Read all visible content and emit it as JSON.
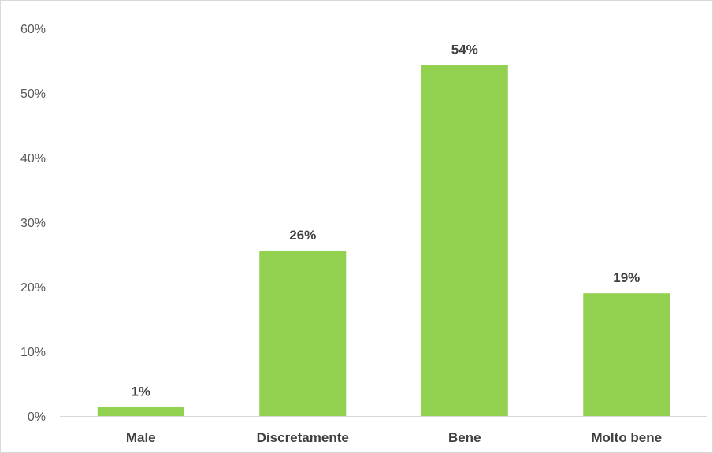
{
  "chart_data": {
    "type": "bar",
    "title": "",
    "xlabel": "",
    "ylabel": "",
    "categories": [
      "Male",
      "Discretamente",
      "Bene",
      "Molto bene"
    ],
    "values": [
      1.4,
      25.6,
      54.3,
      19.0
    ],
    "data_labels": [
      "1%",
      "26%",
      "54%",
      "19%"
    ],
    "ylim": [
      0,
      60
    ],
    "yticks": [
      0,
      10,
      20,
      30,
      40,
      50,
      60
    ],
    "ytick_labels": [
      "0%",
      "10%",
      "20%",
      "30%",
      "40%",
      "50%",
      "60%"
    ],
    "grid": false,
    "legend": "none",
    "bar_color": "#92d050",
    "axis_color": "#d9d9d9"
  }
}
